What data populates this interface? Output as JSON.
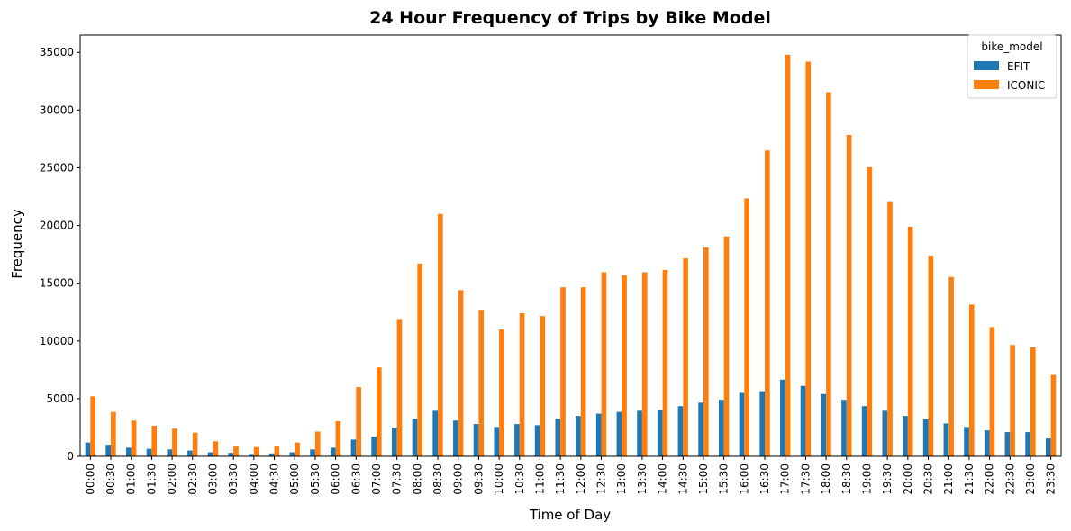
{
  "chart_data": {
    "type": "bar",
    "title": "24 Hour Frequency of Trips by Bike Model",
    "xlabel": "Time of Day",
    "ylabel": "Frequency",
    "ylim": [
      0,
      36500
    ],
    "yticks": [
      0,
      5000,
      10000,
      15000,
      20000,
      25000,
      30000,
      35000
    ],
    "legend_title": "bike_model",
    "legend_position": "top-right",
    "grid": false,
    "categories": [
      "00:00",
      "00:30",
      "01:00",
      "01:30",
      "02:00",
      "02:30",
      "03:00",
      "03:30",
      "04:00",
      "04:30",
      "05:00",
      "05:30",
      "06:00",
      "06:30",
      "07:00",
      "07:30",
      "08:00",
      "08:30",
      "09:00",
      "09:30",
      "10:00",
      "10:30",
      "11:00",
      "11:30",
      "12:00",
      "12:30",
      "13:00",
      "13:30",
      "14:00",
      "14:30",
      "15:00",
      "15:30",
      "16:00",
      "16:30",
      "17:00",
      "17:30",
      "18:00",
      "18:30",
      "19:00",
      "19:30",
      "20:00",
      "20:30",
      "21:00",
      "21:30",
      "22:00",
      "22:30",
      "23:00",
      "23:30"
    ],
    "series": [
      {
        "name": "EFIT",
        "color": "#1f77b4",
        "values": [
          1200,
          1000,
          750,
          650,
          600,
          500,
          350,
          300,
          200,
          250,
          350,
          600,
          750,
          1450,
          1700,
          2500,
          3250,
          3950,
          3100,
          2800,
          2550,
          2800,
          2700,
          3250,
          3500,
          3700,
          3850,
          3950,
          4000,
          4350,
          4650,
          4900,
          5500,
          5650,
          6650,
          6100,
          5400,
          4900,
          4350,
          3950,
          3500,
          3200,
          2850,
          2550,
          2250,
          2100,
          2100,
          1550
        ]
      },
      {
        "name": "ICONIC",
        "color": "#ff7f0e",
        "values": [
          5200,
          3850,
          3100,
          2650,
          2400,
          2050,
          1300,
          850,
          800,
          850,
          1200,
          2150,
          3050,
          6000,
          7700,
          11900,
          16700,
          21000,
          14400,
          12700,
          11000,
          12400,
          12150,
          14650,
          14650,
          15950,
          15700,
          15950,
          16150,
          17150,
          18100,
          19050,
          22350,
          26500,
          34800,
          34200,
          31550,
          27850,
          25050,
          22100,
          19900,
          17400,
          15550,
          13150,
          11200,
          9650,
          9450,
          7050
        ]
      }
    ]
  }
}
